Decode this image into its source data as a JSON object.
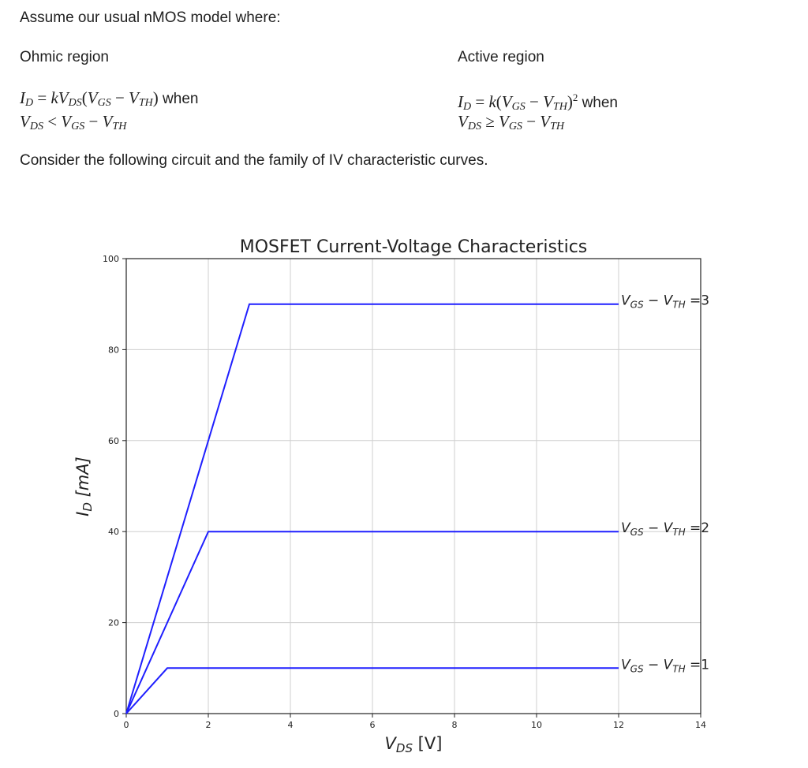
{
  "intro": "Assume our usual nMOS model where:",
  "ohmic": {
    "heading": "Ohmic region",
    "line1_eq": "I_D = kV_DS(V_GS − V_TH)",
    "line1_word": "when",
    "line2_eq": "V_DS < V_GS − V_TH"
  },
  "active": {
    "heading": "Active region",
    "line1_eq": "I_D = k(V_GS − V_TH)^2",
    "line1_word": "when",
    "line2_eq": "V_DS ≥ V_GS − V_TH"
  },
  "consider": "Consider the following circuit and the family of IV characteristic curves.",
  "chart_data": {
    "type": "line",
    "title": "MOSFET Current-Voltage Characteristics",
    "xlabel": "V_DS [V]",
    "ylabel": "I_D [mA]",
    "xlim": [
      0,
      14
    ],
    "ylim": [
      0,
      100
    ],
    "xticks": [
      0,
      2,
      4,
      6,
      8,
      10,
      12,
      14
    ],
    "yticks": [
      0,
      20,
      40,
      60,
      80,
      100
    ],
    "grid": true,
    "line_color": "#1f1fff",
    "series": [
      {
        "name": "V_GS − V_TH = 1",
        "label_value": "1",
        "x": [
          0,
          1,
          12
        ],
        "y": [
          0,
          10,
          10
        ]
      },
      {
        "name": "V_GS − V_TH = 2",
        "label_value": "2",
        "x": [
          0,
          2,
          12
        ],
        "y": [
          0,
          40,
          40
        ]
      },
      {
        "name": "V_GS − V_TH = 3",
        "label_value": "3",
        "x": [
          0,
          3,
          12
        ],
        "y": [
          0,
          90,
          90
        ]
      }
    ]
  }
}
